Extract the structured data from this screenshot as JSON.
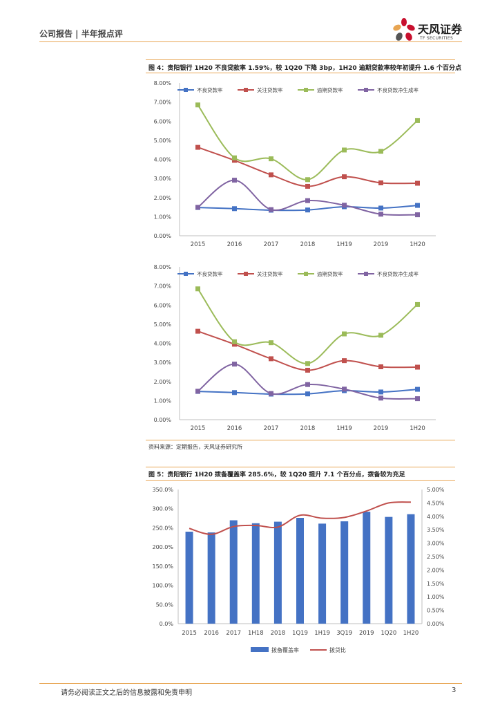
{
  "header": {
    "left_text": "公司报告 | 半年报点评",
    "logo_cn": "天风证券",
    "logo_en": "TF SECURITIES"
  },
  "figure4": {
    "title": "图 4：贵阳银行 1H20 不良贷款率 1.59%，较 1Q20 下降 3bp，1H20 逾期贷款率较年初提升 1.6 个百分点"
  },
  "source": "资料来源：定期报告，天风证券研究所",
  "figure5": {
    "title": "图 5：贵阳银行 1H20 拨备覆盖率 285.6%，较 1Q20 提升 7.1 个百分点，拨备较为充足"
  },
  "footer": {
    "disclaimer": "请务必阅读正文之后的信息披露和免责申明",
    "page": "3"
  },
  "colors": {
    "blue": "#4472c4",
    "red": "#c0504d",
    "green": "#9bbb59",
    "purple": "#8064a2",
    "accent": "#e8a552"
  },
  "chart_data": [
    {
      "type": "line",
      "title": "",
      "categories": [
        "2015",
        "2016",
        "2017",
        "2018",
        "1H19",
        "2019",
        "1H20"
      ],
      "ylim": [
        0,
        8
      ],
      "ystep": 1,
      "yformat": "pct2",
      "legend": "top",
      "series": [
        {
          "name": "不良贷款率",
          "color": "#4472c4",
          "values": [
            1.48,
            1.42,
            1.34,
            1.35,
            1.52,
            1.45,
            1.59
          ]
        },
        {
          "name": "关注贷款率",
          "color": "#c0504d",
          "values": [
            4.63,
            3.95,
            3.19,
            2.59,
            3.09,
            2.77,
            2.75
          ]
        },
        {
          "name": "逾期贷款率",
          "color": "#9bbb59",
          "values": [
            6.85,
            4.08,
            4.03,
            2.94,
            4.49,
            4.42,
            6.03
          ]
        },
        {
          "name": "不良贷款净生成率",
          "color": "#8064a2",
          "values": [
            1.49,
            2.91,
            1.37,
            1.84,
            1.6,
            1.13,
            1.1
          ]
        }
      ]
    },
    {
      "type": "line",
      "title": "",
      "categories": [
        "2015",
        "2016",
        "2017",
        "2018",
        "1H19",
        "2019",
        "1H20"
      ],
      "ylim": [
        0,
        8
      ],
      "ystep": 1,
      "yformat": "pct2",
      "legend": "top",
      "series": [
        {
          "name": "不良贷款率",
          "color": "#4472c4",
          "values": [
            1.48,
            1.42,
            1.34,
            1.35,
            1.52,
            1.45,
            1.59
          ]
        },
        {
          "name": "关注贷款率",
          "color": "#c0504d",
          "values": [
            4.63,
            3.95,
            3.19,
            2.59,
            3.09,
            2.77,
            2.75
          ]
        },
        {
          "name": "逾期贷款率",
          "color": "#9bbb59",
          "values": [
            6.85,
            4.08,
            4.03,
            2.94,
            4.49,
            4.42,
            6.03
          ]
        },
        {
          "name": "不良贷款净生成率",
          "color": "#8064a2",
          "values": [
            1.49,
            2.91,
            1.37,
            1.84,
            1.6,
            1.13,
            1.1
          ]
        }
      ]
    },
    {
      "type": "bar",
      "title": "",
      "categories": [
        "2015",
        "2016",
        "2017",
        "1H18",
        "2018",
        "1Q19",
        "1H19",
        "3Q19",
        "2019",
        "1Q20",
        "1H20"
      ],
      "ylim": [
        0,
        350
      ],
      "ystep": 50,
      "y2lim": [
        0,
        5
      ],
      "y2step": 0.5,
      "legend": "bottom",
      "series": [
        {
          "name": "拨备覆盖率",
          "color": "#4472c4",
          "axis": "left",
          "kind": "bar",
          "values": [
            240.0,
            238.0,
            269.7,
            262.0,
            266.0,
            276.0,
            261.0,
            267.0,
            292.0,
            278.5,
            285.6
          ]
        },
        {
          "name": "拨贷比",
          "color": "#c0504d",
          "axis": "right",
          "kind": "line",
          "values": [
            3.55,
            3.33,
            3.62,
            3.66,
            3.6,
            4.04,
            3.93,
            3.96,
            4.2,
            4.5,
            4.53
          ]
        }
      ]
    }
  ]
}
